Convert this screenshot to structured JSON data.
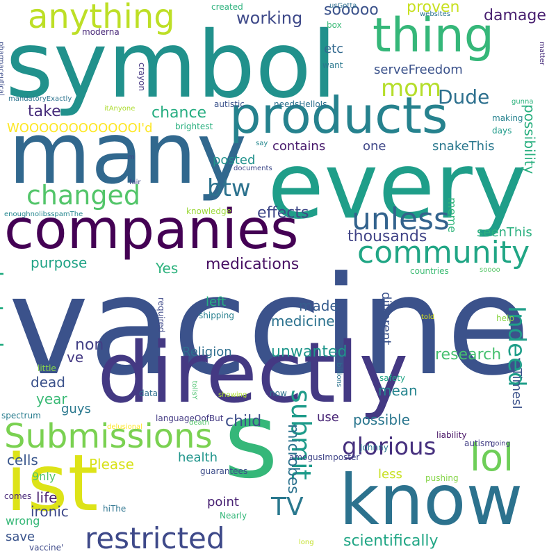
{
  "words": [
    {
      "text": "vaccine",
      "color": "#3b528b"
    },
    {
      "text": "symbol",
      "color": "#21918c"
    },
    {
      "text": "every",
      "color": "#1f9e89"
    },
    {
      "text": "many",
      "color": "#31688e"
    },
    {
      "text": "directly",
      "color": "#443983"
    },
    {
      "text": "companies",
      "color": "#440154"
    },
    {
      "text": "know",
      "color": "#2c728e"
    },
    {
      "text": "products",
      "color": "#26828e"
    },
    {
      "text": "ist",
      "color": "#dde318"
    },
    {
      "text": "s",
      "color": "#35b779"
    },
    {
      "text": "thing",
      "color": "#35b779"
    },
    {
      "text": "anything",
      "color": "#bddf26"
    },
    {
      "text": "Submissions",
      "color": "#7ad151"
    },
    {
      "text": "restricted",
      "color": "#3e4989"
    },
    {
      "text": "changed",
      "color": "#52c569"
    },
    {
      "text": "unless",
      "color": "#33638d"
    },
    {
      "text": "community",
      "color": "#21a685"
    },
    {
      "text": "lol",
      "color": "#6ece58"
    },
    {
      "text": "Indeed",
      "color": "#1f9e89"
    },
    {
      "text": "submit",
      "color": "#1e9b8a"
    },
    {
      "text": "broLook",
      "color": "#25ac82"
    },
    {
      "text": "mom",
      "color": "#b5de2b"
    },
    {
      "text": "btw",
      "color": "#2c728e"
    },
    {
      "text": "TV",
      "color": "#2a788e"
    },
    {
      "text": "glorious",
      "color": "#46307e"
    },
    {
      "text": "Dude",
      "color": "#2d708e"
    },
    {
      "text": "working",
      "color": "#3e4989"
    },
    {
      "text": "proven",
      "color": "#c8e020"
    },
    {
      "text": "damage",
      "color": "#481f70"
    },
    {
      "text": "sooooo",
      "color": "#3b528b"
    },
    {
      "text": "etc",
      "color": "#31688e"
    },
    {
      "text": "serveFreedom",
      "color": "#3b528b"
    },
    {
      "text": "take",
      "color": "#472d7b"
    },
    {
      "text": "chance",
      "color": "#26ad81"
    },
    {
      "text": "WOOOOOOOOOOOOI'd",
      "color": "#fde725"
    },
    {
      "text": "possibility",
      "color": "#29af7f"
    },
    {
      "text": "contains",
      "color": "#481a6c"
    },
    {
      "text": "one",
      "color": "#3f4788"
    },
    {
      "text": "snakeThis",
      "color": "#2a788e"
    },
    {
      "text": "posted",
      "color": "#21918c"
    },
    {
      "text": "meme",
      "color": "#31b57b"
    },
    {
      "text": "effects",
      "color": "#3f4788"
    },
    {
      "text": "thousands",
      "color": "#414487"
    },
    {
      "text": "seenThis",
      "color": "#2ab07f"
    },
    {
      "text": "purpose",
      "color": "#20a386"
    },
    {
      "text": "medications",
      "color": "#471063"
    },
    {
      "text": "Yes",
      "color": "#2db27d"
    },
    {
      "text": "left",
      "color": "#26ad81"
    },
    {
      "text": "made",
      "color": "#365c8d"
    },
    {
      "text": "medicine",
      "color": "#2c728e"
    },
    {
      "text": "different",
      "color": "#3b528b"
    },
    {
      "text": "non",
      "color": "#423f85"
    },
    {
      "text": "Religion",
      "color": "#2e6e8e"
    },
    {
      "text": "unwanted",
      "color": "#1f968b"
    },
    {
      "text": "research",
      "color": "#46c06f"
    },
    {
      "text": "ve",
      "color": "#443983"
    },
    {
      "text": "dead",
      "color": "#3b528b"
    },
    {
      "text": "year",
      "color": "#3aba76"
    },
    {
      "text": "mean",
      "color": "#25848e"
    },
    {
      "text": "guys",
      "color": "#2a788e"
    },
    {
      "text": "child",
      "color": "#3d4e8a"
    },
    {
      "text": "possible",
      "color": "#2a768e"
    },
    {
      "text": "microbes",
      "color": "#2c728e"
    },
    {
      "text": "use",
      "color": "#482576"
    },
    {
      "text": "cells",
      "color": "#39568c"
    },
    {
      "text": "Please",
      "color": "#d8e219"
    },
    {
      "text": "health",
      "color": "#1f958b"
    },
    {
      "text": "9nly",
      "color": "#52c569"
    },
    {
      "text": "less",
      "color": "#c8e020"
    },
    {
      "text": "life",
      "color": "#481f70"
    },
    {
      "text": "point",
      "color": "#482173"
    },
    {
      "text": "ironic",
      "color": "#3e4989"
    },
    {
      "text": "wrong",
      "color": "#37b878"
    },
    {
      "text": "save",
      "color": "#3a548c"
    },
    {
      "text": "scientifically",
      "color": "#21a685"
    },
    {
      "text": "TimesI",
      "color": "#3b528b"
    },
    {
      "text": "Nearly",
      "color": "#35b779"
    },
    {
      "text": "liability",
      "color": "#471365"
    },
    {
      "text": "autism",
      "color": "#433e85"
    },
    {
      "text": "pushing",
      "color": "#86d549"
    },
    {
      "text": "guarantees",
      "color": "#3d4d8a"
    },
    {
      "text": "amogusImposter",
      "color": "#404588"
    },
    {
      "text": "Johnny",
      "color": "#2a788e"
    },
    {
      "text": "safety",
      "color": "#20a486"
    },
    {
      "text": "billions",
      "color": "#2c738e"
    },
    {
      "text": "now",
      "color": "#2d708e"
    },
    {
      "text": "showing",
      "color": "#addc30"
    },
    {
      "text": "tollsY",
      "color": "#4ac16d"
    },
    {
      "text": "languageOofBut",
      "color": "#443a83"
    },
    {
      "text": "death",
      "color": "#52c569"
    },
    {
      "text": "delusional",
      "color": "#fde725"
    },
    {
      "text": "spectrum",
      "color": "#287c8e"
    },
    {
      "text": "data",
      "color": "#2e6f8e"
    },
    {
      "text": "little",
      "color": "#86d549"
    },
    {
      "text": "comes",
      "color": "#482878"
    },
    {
      "text": "hiThe",
      "color": "#2c738e"
    },
    {
      "text": "vaccine'",
      "color": "#3e4a89"
    },
    {
      "text": "long",
      "color": "#c2df23"
    },
    {
      "text": "required",
      "color": "#3e4989"
    },
    {
      "text": "shipping",
      "color": "#277f8e"
    },
    {
      "text": "help",
      "color": "#8bd646"
    },
    {
      "text": "told",
      "color": "#dae319"
    },
    {
      "text": "going",
      "color": "#433d84"
    },
    {
      "text": "countries",
      "color": "#3dbc74"
    },
    {
      "text": "soooo",
      "color": "#56c667"
    },
    {
      "text": "knowledge",
      "color": "#9dd93b"
    },
    {
      "text": "enoughnolibsspamThe",
      "color": "#24868e"
    },
    {
      "text": "documents",
      "color": "#3e4989"
    },
    {
      "text": "fair",
      "color": "#3e4989"
    },
    {
      "text": "m",
      "color": "#404588"
    },
    {
      "text": "say",
      "color": "#24878e"
    },
    {
      "text": "days",
      "color": "#1e9b8a"
    },
    {
      "text": "making",
      "color": "#26828e"
    },
    {
      "text": "gunna",
      "color": "#2db27d"
    },
    {
      "text": "brightest",
      "color": "#2ab07f"
    },
    {
      "text": "autistic",
      "color": "#3b528b"
    },
    {
      "text": "needsHelloIs",
      "color": "#2d708e"
    },
    {
      "text": "itAnyone",
      "color": "#addc30"
    },
    {
      "text": "mandatoryExactly",
      "color": "#2c738e"
    },
    {
      "text": "pharmaceutical",
      "color": "#3d4d8a"
    },
    {
      "text": "crayon",
      "color": "#453781"
    },
    {
      "text": "moderna",
      "color": "#482878"
    },
    {
      "text": "want",
      "color": "#2a788e"
    },
    {
      "text": "box",
      "color": "#3aba76"
    },
    {
      "text": "usGotta",
      "color": "#2e6e8e"
    },
    {
      "text": "created",
      "color": "#2db27d"
    },
    {
      "text": "websites",
      "color": "#2c738e"
    },
    {
      "text": "matter",
      "color": "#472d7b"
    }
  ]
}
